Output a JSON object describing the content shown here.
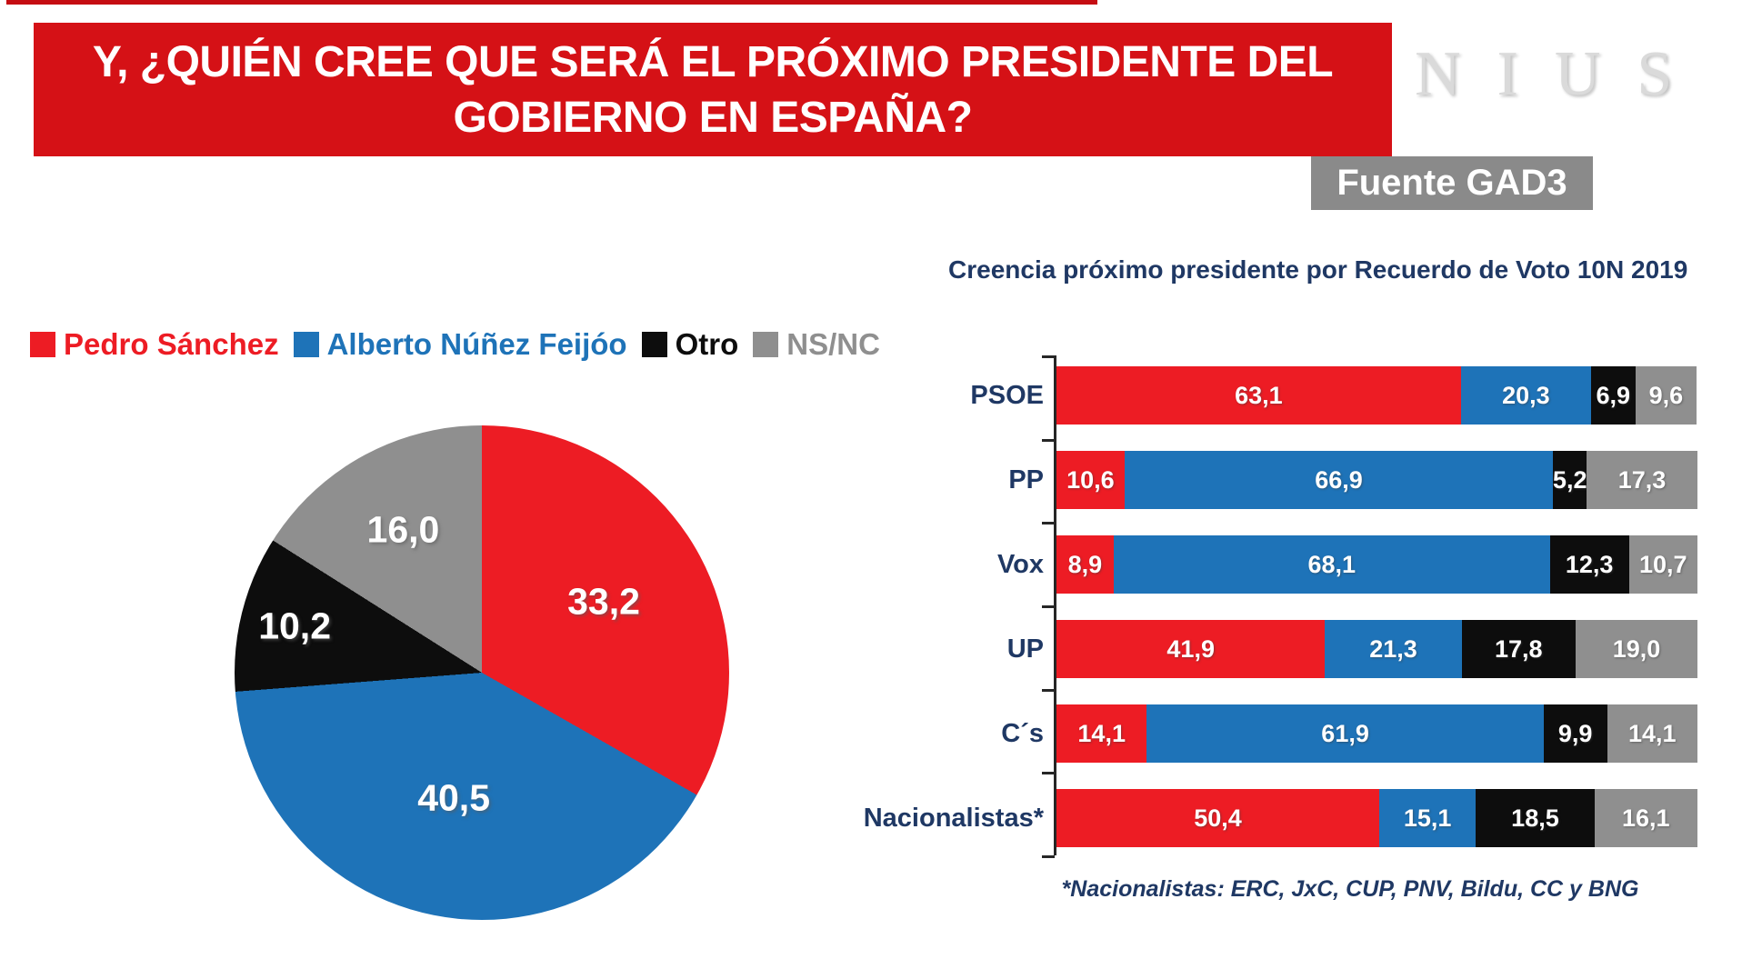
{
  "banner": {
    "title": "Y, ¿QUIÉN CREE QUE SERÁ EL PRÓXIMO PRESIDENTE DEL GOBIERNO EN ESPAÑA?"
  },
  "brand": {
    "logo": "NIUS"
  },
  "source_badge": {
    "label": "Fuente GAD3"
  },
  "colors": {
    "banner_red": "#d51116",
    "top_line_red": "#c50d12",
    "series_red": "#ed1c24",
    "series_blue": "#1e73b8",
    "series_black": "#0d0d0d",
    "series_gray": "#8f8f8f",
    "navy_text": "#1f3864",
    "badge_gray": "#8a8a8a",
    "logo_silver": "#dadada",
    "axis_black": "#262626"
  },
  "legend": {
    "items": [
      {
        "label": "Pedro Sánchez",
        "color": "#ed1c24"
      },
      {
        "label": "Alberto Núñez Feijóo",
        "color": "#1e73b8"
      },
      {
        "label": "Otro",
        "color": "#0d0d0d"
      },
      {
        "label": "NS/NC",
        "color": "#8f8f8f"
      }
    ]
  },
  "chart_data": [
    {
      "type": "pie",
      "labels": [
        "Pedro Sánchez",
        "Alberto Núñez Feijóo",
        "Otro",
        "NS/NC"
      ],
      "values": [
        33.2,
        40.5,
        10.2,
        16.0
      ],
      "value_labels": [
        "33,2",
        "40,5",
        "10,2",
        "16,0"
      ],
      "colors": [
        "#ed1c24",
        "#1e73b8",
        "#0d0d0d",
        "#8f8f8f"
      ],
      "start_angle": "top",
      "direction": "clockwise"
    },
    {
      "type": "bar",
      "variant": "horizontal-stacked",
      "title": "Creencia próximo presidente por Recuerdo de Voto 10N 2019",
      "categories": [
        "PSOE",
        "PP",
        "Vox",
        "UP",
        "C´s",
        "Nacionalistas*"
      ],
      "series": [
        {
          "name": "Pedro Sánchez",
          "color": "#ed1c24",
          "values": [
            63.1,
            10.6,
            8.9,
            41.9,
            14.1,
            50.4
          ]
        },
        {
          "name": "Alberto Núñez Feijóo",
          "color": "#1e73b8",
          "values": [
            20.3,
            66.9,
            68.1,
            21.3,
            61.9,
            15.1
          ]
        },
        {
          "name": "Otro",
          "color": "#0d0d0d",
          "values": [
            6.9,
            5.2,
            12.3,
            17.8,
            9.9,
            18.5
          ]
        },
        {
          "name": "NS/NC",
          "color": "#8f8f8f",
          "values": [
            9.6,
            17.3,
            10.7,
            19.0,
            14.1,
            16.1
          ]
        }
      ],
      "xlim": [
        0,
        100
      ],
      "value_label_format": "decimal-comma",
      "footnote": "*Nacionalistas: ERC, JxC, CUP, PNV, Bildu, CC y BNG"
    }
  ]
}
